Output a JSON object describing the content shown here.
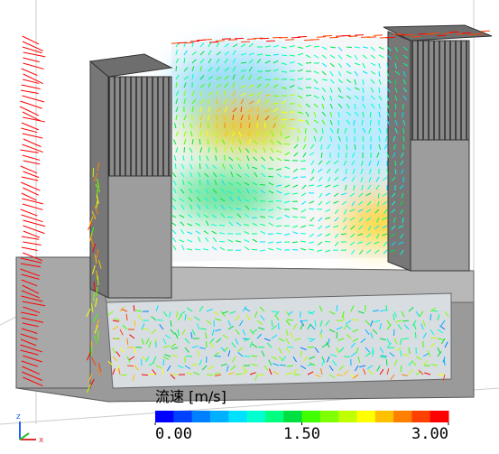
{
  "legend": {
    "title": "流速 [m/s]",
    "range": [
      0,
      3
    ],
    "ticks": [
      {
        "value": 0,
        "label": "0.00"
      },
      {
        "value": 1.5,
        "label": "1.50"
      },
      {
        "value": 3,
        "label": "3.00"
      }
    ],
    "colors": [
      "#0000ff",
      "#0040ff",
      "#0080ff",
      "#00b0ff",
      "#00e0ff",
      "#00ffd0",
      "#00ff80",
      "#00e040",
      "#40ff00",
      "#80ff00",
      "#c0ff00",
      "#ffff00",
      "#ffc000",
      "#ff8000",
      "#ff4000",
      "#ff0000"
    ]
  },
  "axes": {
    "z": "z",
    "x": "x"
  }
}
